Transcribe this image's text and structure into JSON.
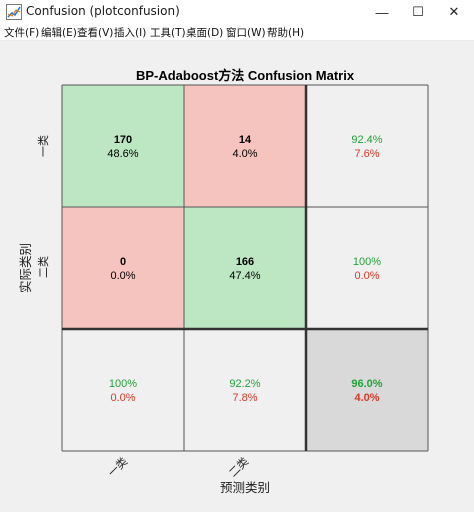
{
  "window": {
    "title": "Confusion (plotconfusion)",
    "minimize_glyph": "—",
    "maximize_glyph": "☐",
    "close_glyph": "✕"
  },
  "menu": {
    "items": [
      "文件(F)",
      "编辑(E)",
      "查看(V)",
      "插入(I)",
      "工具(T)",
      "桌面(D)",
      "窗口(W)",
      "帮助(H)"
    ]
  },
  "colors": {
    "correct_cell": "#bde6c3",
    "wrong_cell": "#f6c4be",
    "summary_cell": "#f0f0f0",
    "total_cell": "#d9d9d9",
    "green_text": "#22a33a",
    "red_text": "#d93a2a"
  },
  "chart_data": {
    "type": "table",
    "title": "BP-Adaboost方法 Confusion Matrix",
    "xlabel": "预测类别",
    "ylabel": "实际类别",
    "class_labels": [
      "一类",
      "二类"
    ],
    "cells": [
      [
        {
          "count": "170",
          "percent": "48.6%",
          "kind": "correct"
        },
        {
          "count": "14",
          "percent": "4.0%",
          "kind": "wrong"
        },
        {
          "top": "92.4%",
          "bottom": "7.6%",
          "kind": "summary"
        }
      ],
      [
        {
          "count": "0",
          "percent": "0.0%",
          "kind": "wrong"
        },
        {
          "count": "166",
          "percent": "47.4%",
          "kind": "correct"
        },
        {
          "top": "100%",
          "bottom": "0.0%",
          "kind": "summary"
        }
      ],
      [
        {
          "top": "100%",
          "bottom": "0.0%",
          "kind": "summary"
        },
        {
          "top": "92.2%",
          "bottom": "7.8%",
          "kind": "summary"
        },
        {
          "top": "96.0%",
          "bottom": "4.0%",
          "kind": "total"
        }
      ]
    ]
  }
}
